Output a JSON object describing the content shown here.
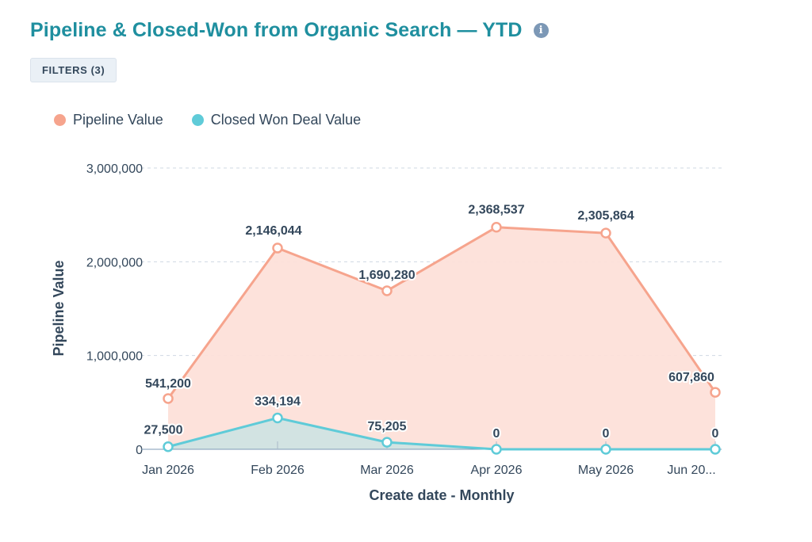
{
  "header": {
    "title": "Pipeline & Closed-Won from Organic Search — YTD",
    "info_icon": "info-icon",
    "filters_label": "FILTERS (3)"
  },
  "colors": {
    "title": "#1f8f9f",
    "pipeline_line": "#f6a48d",
    "pipeline_fill": "#fde0d9",
    "closed_won_line": "#5fcbd8",
    "closed_won_fill": "#cde3e2",
    "text": "#33475b",
    "grid": "#cfd8e3"
  },
  "chart_data": {
    "type": "area",
    "categories": [
      "Jan 2026",
      "Feb 2026",
      "Mar 2026",
      "Apr 2026",
      "May 2026",
      "Jun 20..."
    ],
    "series": [
      {
        "name": "Pipeline Value",
        "values": [
          541200,
          2146044,
          1690280,
          2368537,
          2305864,
          607860
        ],
        "labels": [
          "541,200",
          "2,146,044",
          "1,690,280",
          "2,368,537",
          "2,305,864",
          "607,860"
        ]
      },
      {
        "name": "Closed Won Deal Value",
        "values": [
          27500,
          334194,
          75205,
          0,
          0,
          0
        ],
        "labels": [
          "27,500",
          "334,194",
          "75,205",
          "0",
          "0",
          "0"
        ]
      }
    ],
    "xlabel": "Create date - Monthly",
    "ylabel": "Pipeline Value",
    "ylim": [
      0,
      3000000
    ],
    "yticks": [
      0,
      1000000,
      2000000,
      3000000
    ],
    "ytick_labels": [
      "0",
      "1,000,000",
      "2,000,000",
      "3,000,000"
    ],
    "legend_position": "top-left",
    "grid": true
  }
}
